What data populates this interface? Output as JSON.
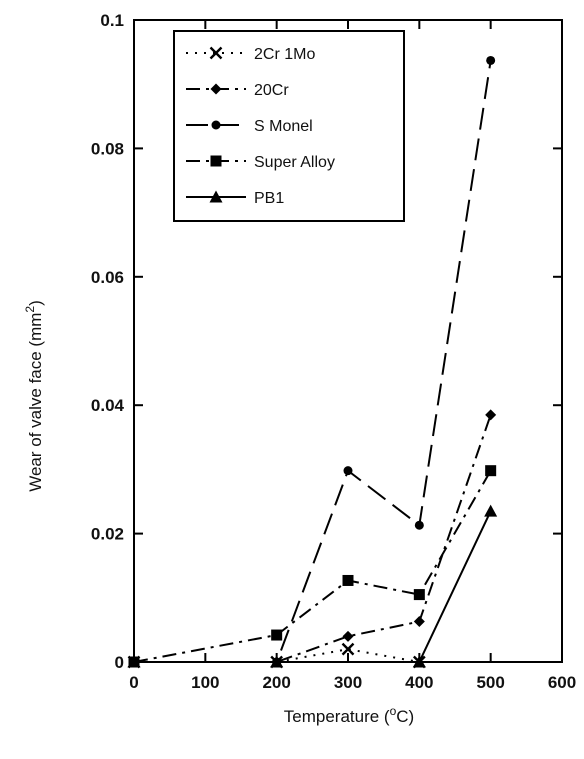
{
  "chart_data": {
    "type": "line",
    "xlabel": "Temperature (",
    "xlabel_sup": "o",
    "xlabel_tail": "C)",
    "ylabel": "Wear of valve face (mm",
    "ylabel_sup": "2",
    "ylabel_tail": ")",
    "xlim": [
      0,
      600
    ],
    "ylim": [
      0,
      0.1
    ],
    "x_ticks": [
      "0",
      "100",
      "200",
      "300",
      "400",
      "500",
      "600"
    ],
    "y_ticks": [
      "0",
      "0.02",
      "0.04",
      "0.06",
      "0.08",
      "0.1"
    ],
    "grid": false,
    "legend_position": "top-left",
    "x": [
      0,
      200,
      300,
      400,
      500
    ],
    "series": [
      {
        "name": "2Cr 1Mo",
        "marker": "x",
        "dash": "dotted",
        "values": [
          0,
          0,
          0.002,
          0,
          null
        ]
      },
      {
        "name": "20Cr",
        "marker": "diamond",
        "dash": "dash-dot",
        "values": [
          0,
          0,
          0.004,
          0.0063,
          0.0385
        ]
      },
      {
        "name": "S Monel",
        "marker": "circle",
        "dash": "long-dash",
        "values": [
          0,
          0,
          0.0298,
          0.0213,
          0.0937
        ]
      },
      {
        "name": "Super Alloy",
        "marker": "square",
        "dash": "dash-dot",
        "values": [
          0,
          0.0042,
          0.0127,
          0.0105,
          0.0298
        ]
      },
      {
        "name": "PB1",
        "marker": "triangle",
        "dash": "solid",
        "values": [
          0,
          0,
          null,
          0,
          0.0235
        ]
      }
    ]
  }
}
